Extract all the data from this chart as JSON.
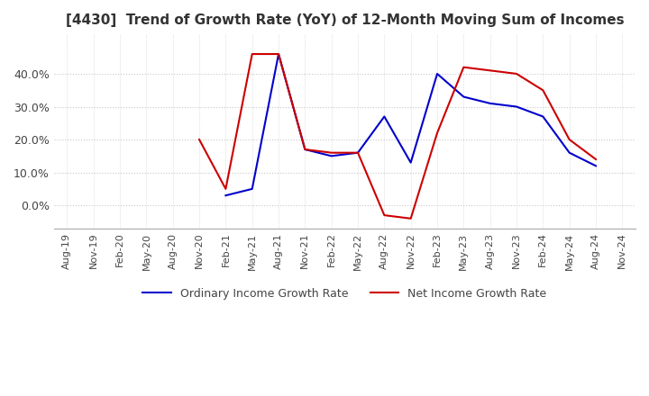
{
  "title": "[4430]  Trend of Growth Rate (YoY) of 12-Month Moving Sum of Incomes",
  "title_fontsize": 11,
  "ylim": [
    -0.07,
    0.52
  ],
  "yticks": [
    0.0,
    0.1,
    0.2,
    0.3,
    0.4
  ],
  "ytick_labels": [
    "0.0%",
    "10.0%",
    "20.0%",
    "30.0%",
    "40.0%"
  ],
  "background_color": "#ffffff",
  "grid_color": "#c8c8c8",
  "legend_labels": [
    "Ordinary Income Growth Rate",
    "Net Income Growth Rate"
  ],
  "legend_colors": [
    "#0000cc",
    "#cc0000"
  ],
  "x_labels": [
    "Aug-19",
    "Nov-19",
    "Feb-20",
    "May-20",
    "Aug-20",
    "Nov-20",
    "Feb-21",
    "May-21",
    "Aug-21",
    "Nov-21",
    "Feb-22",
    "May-22",
    "Aug-22",
    "Nov-22",
    "Feb-23",
    "May-23",
    "Aug-23",
    "Nov-23",
    "Feb-24",
    "May-24",
    "Aug-24",
    "Nov-24"
  ],
  "ordinary_income": [
    null,
    null,
    null,
    null,
    null,
    null,
    0.03,
    0.05,
    0.46,
    0.17,
    0.15,
    0.16,
    0.27,
    0.13,
    0.4,
    0.33,
    0.31,
    0.3,
    0.27,
    0.16,
    0.12,
    null
  ],
  "net_income": [
    null,
    null,
    null,
    null,
    null,
    0.2,
    0.05,
    0.46,
    0.46,
    0.17,
    0.16,
    0.16,
    -0.03,
    -0.04,
    0.22,
    0.42,
    0.41,
    0.4,
    0.35,
    0.2,
    0.14,
    null
  ]
}
